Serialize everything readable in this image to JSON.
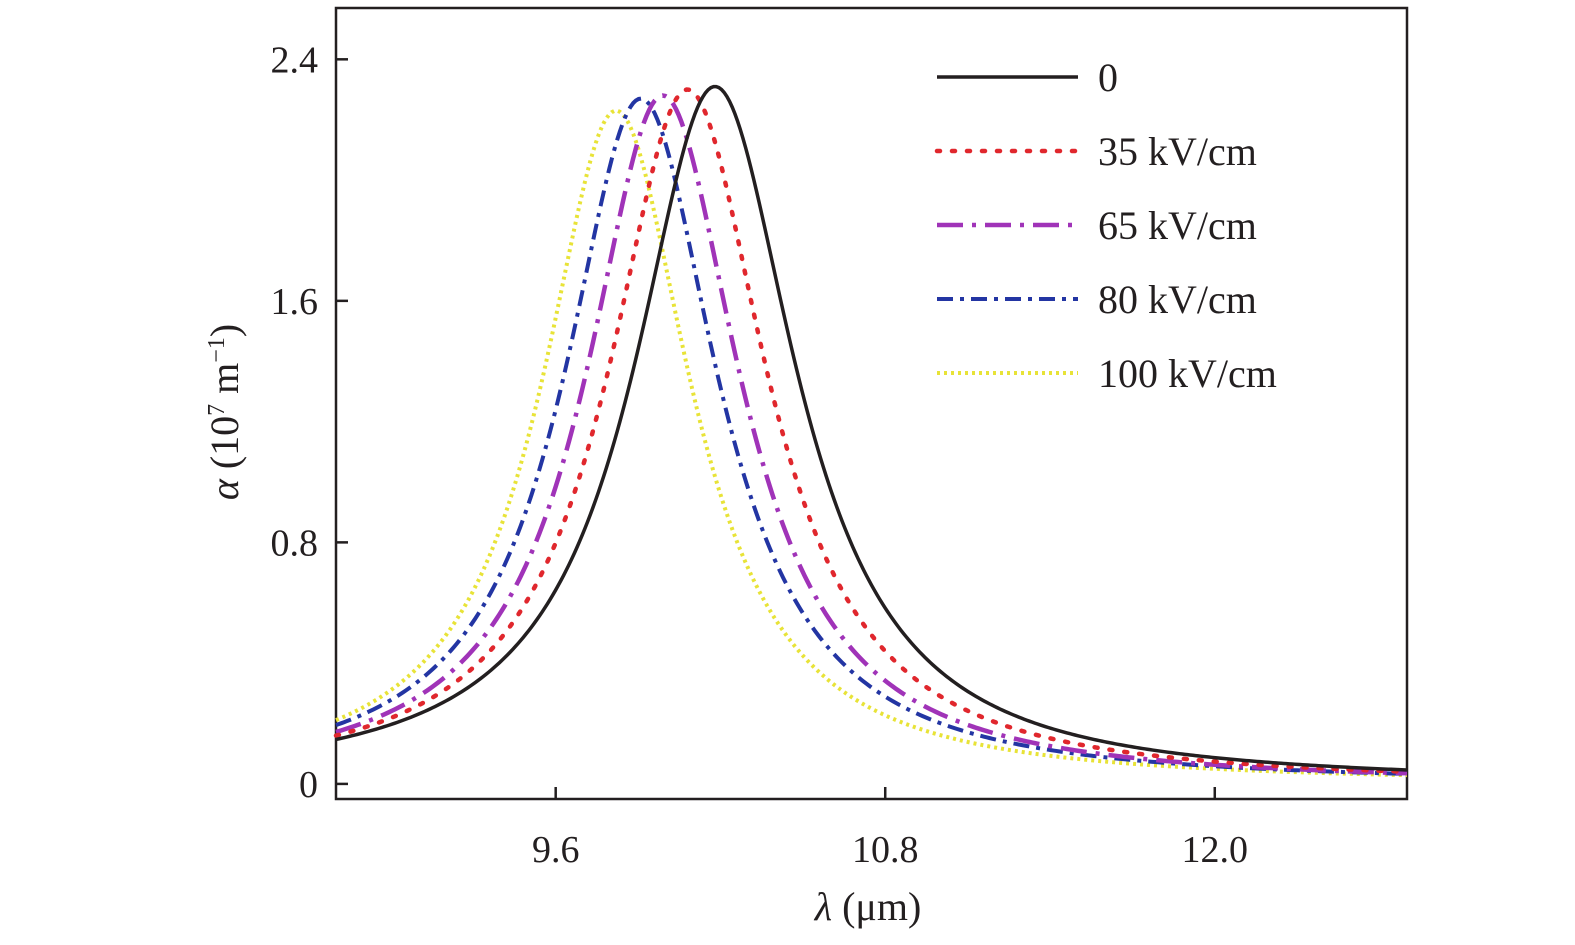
{
  "chart_data": {
    "type": "line",
    "xlabel": {
      "symbol": "λ",
      "unit": " (μm)"
    },
    "ylabel": {
      "symbol": "α",
      "unit_pre": " (10",
      "unit_exp": "7",
      "unit_mid": " m",
      "unit_exp2": "−1",
      "unit_post": ")"
    },
    "xlim": [
      8.8,
      12.7
    ],
    "ylim": [
      -0.05,
      2.57
    ],
    "x_ticks": [
      9.6,
      10.8,
      12.0
    ],
    "x_tick_labels": [
      "9.6",
      "10.8",
      "12.0"
    ],
    "y_ticks": [
      0,
      0.8,
      1.6,
      2.4
    ],
    "y_tick_labels": [
      "0",
      "0.8",
      "1.6",
      "2.4"
    ],
    "grid": false,
    "legend_position": "top-right",
    "series": [
      {
        "name": "0",
        "color": "#231f20",
        "style": "solid",
        "peak_x": 10.18,
        "peak_y": 2.31,
        "hwhm": 0.36
      },
      {
        "name": "35 kV/cm",
        "color": "#e0272d",
        "style": "dotted",
        "peak_x": 10.08,
        "peak_y": 2.3,
        "hwhm": 0.35
      },
      {
        "name": "65 kV/cm",
        "color": "#a033b8",
        "style": "dashdot",
        "peak_x": 9.99,
        "peak_y": 2.28,
        "hwhm": 0.34
      },
      {
        "name": "80 kV/cm",
        "color": "#2335a3",
        "style": "dashdotdot",
        "peak_x": 9.91,
        "peak_y": 2.27,
        "hwhm": 0.34
      },
      {
        "name": "100 kV/cm",
        "color": "#e8e337",
        "style": "densedot",
        "peak_x": 9.82,
        "peak_y": 2.23,
        "hwhm": 0.33
      }
    ]
  }
}
